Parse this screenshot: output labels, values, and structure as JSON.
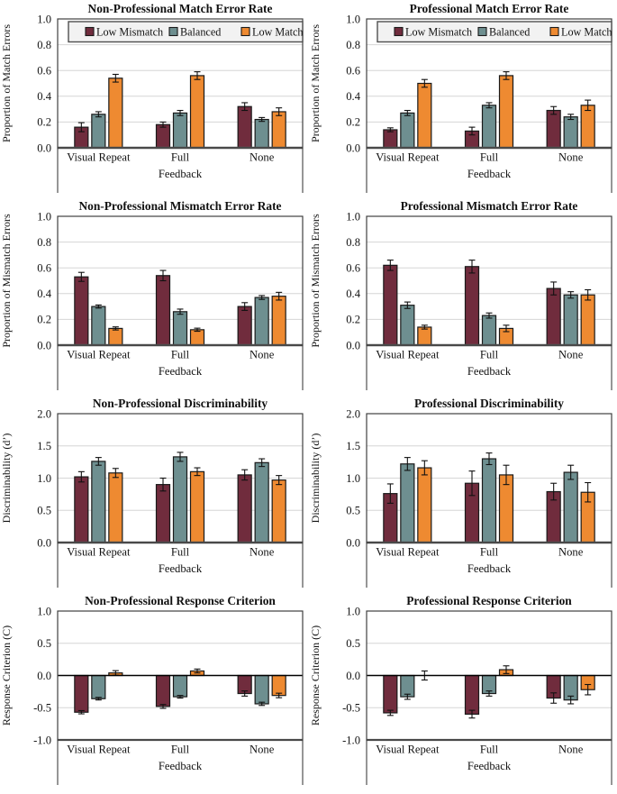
{
  "colors": {
    "low_mismatch": "#702C3D",
    "balanced": "#6E8F90",
    "low_match": "#EE8A31",
    "bar_border": "#1A1A1A",
    "gridline": "#D6D6D6",
    "frame": "#3F3F3F",
    "axis": "#595959",
    "legend_fill": "#F2F2F2"
  },
  "legend": {
    "labels": [
      "Low Mismatch",
      "Balanced",
      "Low Match"
    ],
    "position": "top"
  },
  "chart_data": [
    {
      "type": "bar",
      "title": "Non-Professional Match Error Rate",
      "xlabel": "Feedback",
      "ylabel": "Proportion of Match Errors",
      "ylim": [
        0,
        1
      ],
      "ytick_step": 0.2,
      "grid": true,
      "show_legend": true,
      "categories": [
        "Visual Repeat",
        "Full",
        "None"
      ],
      "series": [
        {
          "name": "Low Mismatch",
          "values": [
            0.16,
            0.18,
            0.32
          ],
          "errors": [
            0.035,
            0.02,
            0.03
          ]
        },
        {
          "name": "Balanced",
          "values": [
            0.26,
            0.27,
            0.22
          ],
          "errors": [
            0.02,
            0.02,
            0.015
          ]
        },
        {
          "name": "Low Match",
          "values": [
            0.54,
            0.56,
            0.28
          ],
          "errors": [
            0.03,
            0.03,
            0.03
          ]
        }
      ]
    },
    {
      "type": "bar",
      "title": "Professional Match Error Rate",
      "xlabel": "Feedback",
      "ylabel": "Proportion of Match Errors",
      "ylim": [
        0,
        1
      ],
      "ytick_step": 0.2,
      "grid": true,
      "show_legend": true,
      "categories": [
        "Visual Repeat",
        "Full",
        "None"
      ],
      "series": [
        {
          "name": "Low Mismatch",
          "values": [
            0.14,
            0.13,
            0.29
          ],
          "errors": [
            0.015,
            0.03,
            0.03
          ]
        },
        {
          "name": "Balanced",
          "values": [
            0.27,
            0.33,
            0.24
          ],
          "errors": [
            0.02,
            0.02,
            0.02
          ]
        },
        {
          "name": "Low Match",
          "values": [
            0.5,
            0.56,
            0.33
          ],
          "errors": [
            0.03,
            0.03,
            0.04
          ]
        }
      ]
    },
    {
      "type": "bar",
      "title": "Non-Professional Mismatch Error Rate",
      "xlabel": "Feedback",
      "ylabel": "Proportion of Mismatch Errors",
      "ylim": [
        0,
        1
      ],
      "ytick_step": 0.2,
      "grid": true,
      "show_legend": false,
      "categories": [
        "Visual Repeat",
        "Full",
        "None"
      ],
      "series": [
        {
          "name": "Low Mismatch",
          "values": [
            0.53,
            0.54,
            0.3
          ],
          "errors": [
            0.035,
            0.04,
            0.03
          ]
        },
        {
          "name": "Balanced",
          "values": [
            0.3,
            0.26,
            0.37
          ],
          "errors": [
            0.012,
            0.02,
            0.015
          ]
        },
        {
          "name": "Low Match",
          "values": [
            0.13,
            0.12,
            0.38
          ],
          "errors": [
            0.012,
            0.012,
            0.03
          ]
        }
      ]
    },
    {
      "type": "bar",
      "title": "Professional Mismatch Error Rate",
      "xlabel": "Feedback",
      "ylabel": "Proportion of Mismatch Errors",
      "ylim": [
        0,
        1
      ],
      "ytick_step": 0.2,
      "grid": true,
      "show_legend": false,
      "categories": [
        "Visual Repeat",
        "Full",
        "None"
      ],
      "series": [
        {
          "name": "Low Mismatch",
          "values": [
            0.62,
            0.61,
            0.44
          ],
          "errors": [
            0.04,
            0.05,
            0.05
          ]
        },
        {
          "name": "Balanced",
          "values": [
            0.31,
            0.23,
            0.39
          ],
          "errors": [
            0.025,
            0.02,
            0.025
          ]
        },
        {
          "name": "Low Match",
          "values": [
            0.14,
            0.13,
            0.39
          ],
          "errors": [
            0.015,
            0.025,
            0.04
          ]
        }
      ]
    },
    {
      "type": "bar",
      "title": "Non-Professional Discriminability",
      "xlabel": "Feedback",
      "ylabel": "Discriminability (d’)",
      "ylim": [
        0,
        2
      ],
      "ytick_step": 0.5,
      "grid": true,
      "show_legend": false,
      "categories": [
        "Visual Repeat",
        "Full",
        "None"
      ],
      "series": [
        {
          "name": "Low Mismatch",
          "values": [
            1.02,
            0.9,
            1.05
          ],
          "errors": [
            0.08,
            0.1,
            0.08
          ]
        },
        {
          "name": "Balanced",
          "values": [
            1.26,
            1.33,
            1.24
          ],
          "errors": [
            0.06,
            0.07,
            0.06
          ]
        },
        {
          "name": "Low Match",
          "values": [
            1.08,
            1.1,
            0.97
          ],
          "errors": [
            0.07,
            0.06,
            0.07
          ]
        }
      ]
    },
    {
      "type": "bar",
      "title": "Professional Discriminability",
      "xlabel": "Feedback",
      "ylabel": "Discriminability (d’)",
      "ylim": [
        0,
        2
      ],
      "ytick_step": 0.5,
      "grid": true,
      "show_legend": false,
      "categories": [
        "Visual Repeat",
        "Full",
        "None"
      ],
      "series": [
        {
          "name": "Low Mismatch",
          "values": [
            0.76,
            0.92,
            0.79
          ],
          "errors": [
            0.15,
            0.19,
            0.13
          ]
        },
        {
          "name": "Balanced",
          "values": [
            1.22,
            1.3,
            1.09
          ],
          "errors": [
            0.1,
            0.09,
            0.11
          ]
        },
        {
          "name": "Low Match",
          "values": [
            1.16,
            1.05,
            0.78
          ],
          "errors": [
            0.11,
            0.15,
            0.15
          ]
        }
      ]
    },
    {
      "type": "bar",
      "title": "Non-Professional Response Criterion",
      "xlabel": "Feedback",
      "ylabel": "Response Criterion (C)",
      "ylim": [
        -1,
        1
      ],
      "ytick_step": 0.5,
      "grid": true,
      "show_legend": false,
      "categories": [
        "Visual Repeat",
        "Full",
        "None"
      ],
      "series": [
        {
          "name": "Low Mismatch",
          "values": [
            -0.57,
            -0.48,
            -0.28
          ],
          "errors": [
            0.025,
            0.03,
            0.04
          ]
        },
        {
          "name": "Balanced",
          "values": [
            -0.36,
            -0.33,
            -0.44
          ],
          "errors": [
            0.02,
            0.02,
            0.025
          ]
        },
        {
          "name": "Low Match",
          "values": [
            0.04,
            0.07,
            -0.31
          ],
          "errors": [
            0.035,
            0.03,
            0.035
          ]
        }
      ]
    },
    {
      "type": "bar",
      "title": "Professional Response Criterion",
      "xlabel": "Feedback",
      "ylabel": "Response Criterion (C)",
      "ylim": [
        -1,
        1
      ],
      "ytick_step": 0.5,
      "grid": true,
      "show_legend": false,
      "categories": [
        "Visual Repeat",
        "Full",
        "None"
      ],
      "series": [
        {
          "name": "Low Mismatch",
          "values": [
            -0.58,
            -0.6,
            -0.35
          ],
          "errors": [
            0.04,
            0.06,
            0.08
          ]
        },
        {
          "name": "Balanced",
          "values": [
            -0.33,
            -0.28,
            -0.38
          ],
          "errors": [
            0.04,
            0.04,
            0.06
          ]
        },
        {
          "name": "Low Match",
          "values": [
            0.0,
            0.09,
            -0.22
          ],
          "errors": [
            0.07,
            0.06,
            0.08
          ]
        }
      ]
    }
  ]
}
